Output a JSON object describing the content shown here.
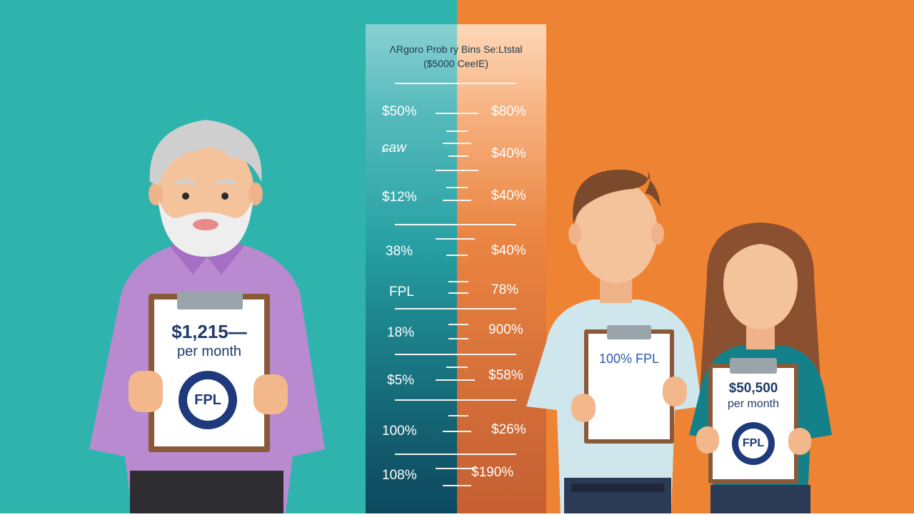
{
  "scale": {
    "title_line1": "ɅRgoro Prob ry Bins Se:Ltstal",
    "title_line2": "($5000 CeeIE)",
    "left_labels": [
      "$50%",
      "ɕaw",
      "$12%",
      "38%",
      "FPL",
      "18%",
      "$5%",
      "100%",
      "108%"
    ],
    "right_labels": [
      "$80%",
      "$40%",
      "$40%",
      "$40%",
      "78%",
      "900%",
      "$58%",
      "$26%",
      "$190%"
    ]
  },
  "elder": {
    "card_amount": "$1,215—",
    "card_period": "per month",
    "seal_text": "FPL"
  },
  "young_man": {
    "card_text": "100% FPL"
  },
  "young_woman": {
    "card_amount": "$50,500",
    "card_period": "per month",
    "seal_text": "FPL"
  },
  "colors": {
    "left_bg": "#2fb3ad",
    "right_bg": "#ee8433",
    "seal": "#1f3a7a",
    "text_navy": "#1f3a6a"
  }
}
